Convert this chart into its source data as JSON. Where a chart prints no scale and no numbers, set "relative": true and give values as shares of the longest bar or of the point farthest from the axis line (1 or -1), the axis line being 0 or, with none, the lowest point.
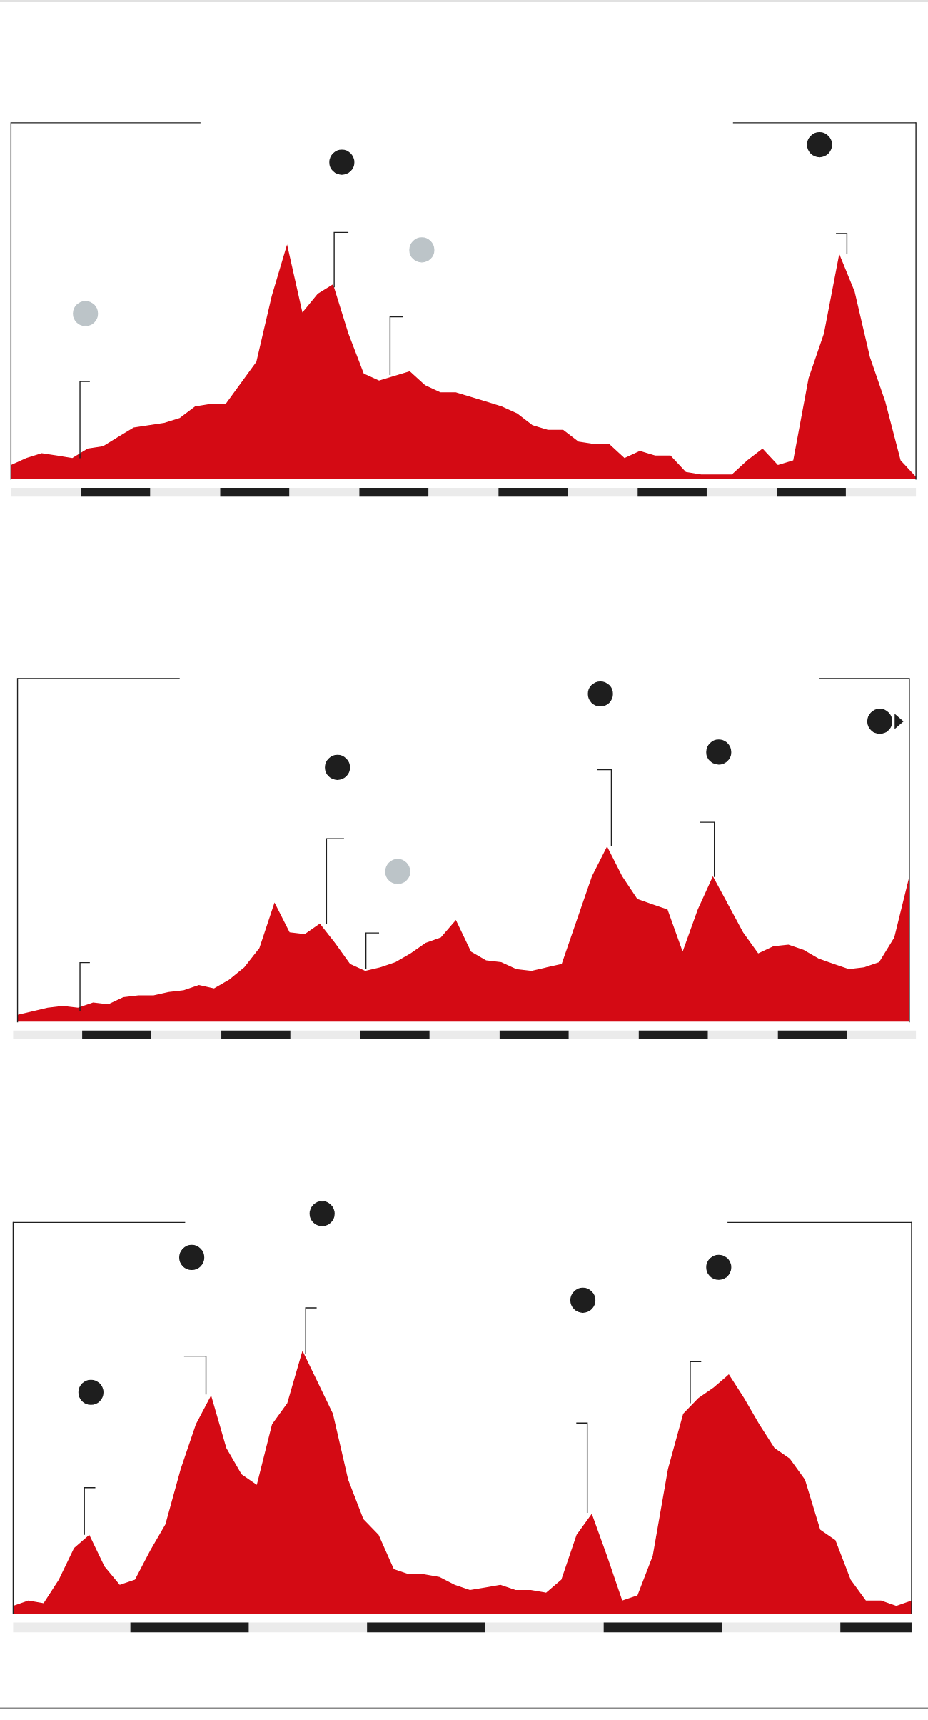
{
  "chart_data": [
    {
      "type": "area",
      "relative": true,
      "color": "#d40a14",
      "categories": [
        null,
        null,
        null,
        null,
        null,
        null,
        null,
        null,
        null,
        null,
        null,
        null,
        null,
        null,
        null,
        null,
        null,
        null,
        null,
        null,
        null,
        null,
        null,
        null,
        null,
        null,
        null,
        null,
        null,
        null,
        null,
        null,
        null,
        null,
        null,
        null,
        null,
        null,
        null,
        null,
        null,
        null,
        null,
        null,
        null,
        null,
        null,
        null,
        null,
        null,
        null,
        null,
        null,
        null,
        null,
        null,
        null,
        null,
        null,
        null
      ],
      "values": [
        0.06,
        0.09,
        0.11,
        0.1,
        0.09,
        0.13,
        0.14,
        0.18,
        0.22,
        0.23,
        0.24,
        0.26,
        0.31,
        0.32,
        0.32,
        0.41,
        0.5,
        0.78,
        1.0,
        0.71,
        0.79,
        0.83,
        0.62,
        0.45,
        0.42,
        0.44,
        0.46,
        0.4,
        0.37,
        0.37,
        0.35,
        0.33,
        0.31,
        0.28,
        0.23,
        0.21,
        0.21,
        0.16,
        0.15,
        0.15,
        0.09,
        0.12,
        0.1,
        0.1,
        0.03,
        0.02,
        0.02,
        0.02,
        0.08,
        0.13,
        0.06,
        0.08,
        0.43,
        0.62,
        0.96,
        0.8,
        0.52,
        0.33,
        0.08,
        0.01
      ]
    },
    {
      "type": "area",
      "relative": true,
      "color": "#d40a14",
      "categories": [
        null,
        null,
        null,
        null,
        null,
        null,
        null,
        null,
        null,
        null,
        null,
        null,
        null,
        null,
        null,
        null,
        null,
        null,
        null,
        null,
        null,
        null,
        null,
        null,
        null,
        null,
        null,
        null,
        null,
        null,
        null,
        null,
        null,
        null,
        null,
        null,
        null,
        null,
        null,
        null,
        null,
        null,
        null,
        null,
        null,
        null,
        null,
        null,
        null,
        null,
        null,
        null,
        null,
        null,
        null,
        null,
        null,
        null,
        null,
        null
      ],
      "values": [
        0.04,
        0.06,
        0.08,
        0.09,
        0.08,
        0.11,
        0.1,
        0.14,
        0.15,
        0.15,
        0.17,
        0.18,
        0.21,
        0.19,
        0.24,
        0.31,
        0.42,
        0.68,
        0.51,
        0.5,
        0.56,
        0.45,
        0.33,
        0.29,
        0.31,
        0.34,
        0.39,
        0.45,
        0.48,
        0.58,
        0.4,
        0.35,
        0.34,
        0.3,
        0.29,
        0.31,
        0.33,
        0.58,
        0.83,
        1.0,
        0.83,
        0.7,
        0.67,
        0.64,
        0.4,
        0.64,
        0.83,
        0.67,
        0.51,
        0.39,
        0.43,
        0.44,
        0.41,
        0.36,
        0.33,
        0.3,
        0.31,
        0.34,
        0.48,
        0.83
      ]
    },
    {
      "type": "area",
      "relative": true,
      "color": "#d40a14",
      "categories": [
        null,
        null,
        null,
        null,
        null,
        null,
        null,
        null,
        null,
        null,
        null,
        null,
        null,
        null,
        null,
        null,
        null,
        null,
        null,
        null,
        null,
        null,
        null,
        null,
        null,
        null,
        null,
        null,
        null,
        null,
        null,
        null,
        null,
        null,
        null,
        null,
        null,
        null,
        null,
        null,
        null,
        null,
        null,
        null,
        null,
        null,
        null,
        null,
        null,
        null,
        null,
        null,
        null,
        null,
        null,
        null,
        null,
        null,
        null,
        null
      ],
      "values": [
        0.03,
        0.05,
        0.04,
        0.13,
        0.25,
        0.3,
        0.18,
        0.11,
        0.13,
        0.24,
        0.34,
        0.55,
        0.72,
        0.83,
        0.63,
        0.53,
        0.49,
        0.72,
        0.8,
        1.0,
        0.88,
        0.76,
        0.51,
        0.36,
        0.3,
        0.17,
        0.15,
        0.15,
        0.14,
        0.11,
        0.09,
        0.1,
        0.11,
        0.09,
        0.09,
        0.08,
        0.13,
        0.3,
        0.38,
        0.22,
        0.05,
        0.07,
        0.22,
        0.55,
        0.76,
        0.82,
        0.86,
        0.91,
        0.82,
        0.72,
        0.63,
        0.59,
        0.51,
        0.32,
        0.28,
        0.13,
        0.05,
        0.05,
        0.03,
        0.05
      ]
    }
  ]
}
